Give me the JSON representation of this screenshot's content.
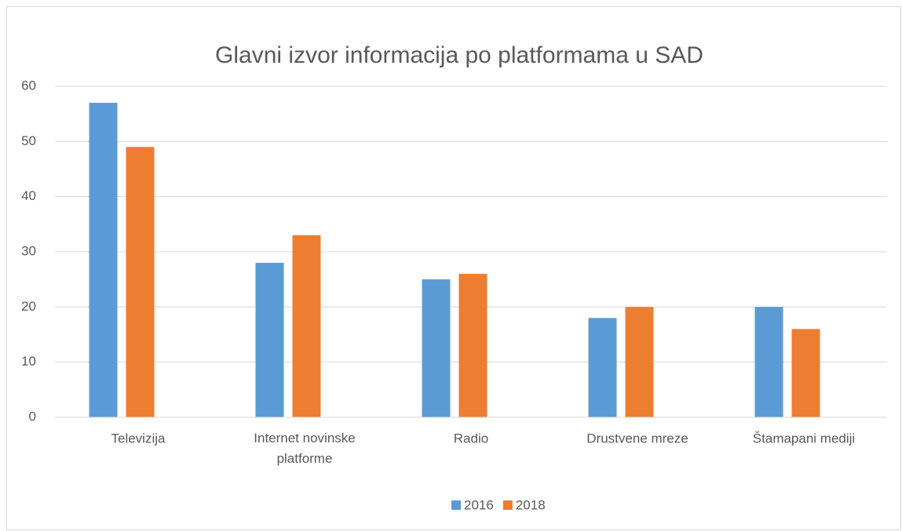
{
  "chart_data": {
    "type": "bar",
    "title": "Glavni izvor informacija po platformama u SAD",
    "categories": [
      "Televizija",
      "Internet novinske platforme",
      "Radio",
      "Drustvene mreze",
      "Štamapani mediji"
    ],
    "series": [
      {
        "name": "2016",
        "color": "#5b9bd5",
        "values": [
          57,
          28,
          25,
          18,
          20
        ]
      },
      {
        "name": "2018",
        "color": "#ed7d31",
        "values": [
          49,
          33,
          26,
          20,
          16
        ]
      }
    ],
    "ylim": [
      0,
      60
    ],
    "yticks": [
      0,
      10,
      20,
      30,
      40,
      50,
      60
    ],
    "grid": true,
    "legend": "bottom"
  }
}
